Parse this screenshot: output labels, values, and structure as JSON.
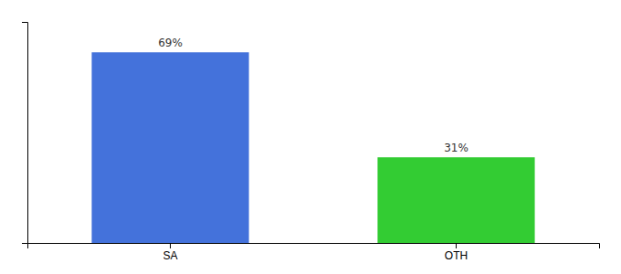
{
  "chart_data": {
    "type": "bar",
    "categories": [
      "SA",
      "OTH"
    ],
    "values": [
      69,
      31
    ],
    "value_labels": [
      "69%",
      "31%"
    ],
    "colors": [
      "#4472db",
      "#33cc33"
    ],
    "ylim": [
      0,
      80
    ],
    "grid": false,
    "data_labels": true,
    "tick_labels": "x"
  }
}
